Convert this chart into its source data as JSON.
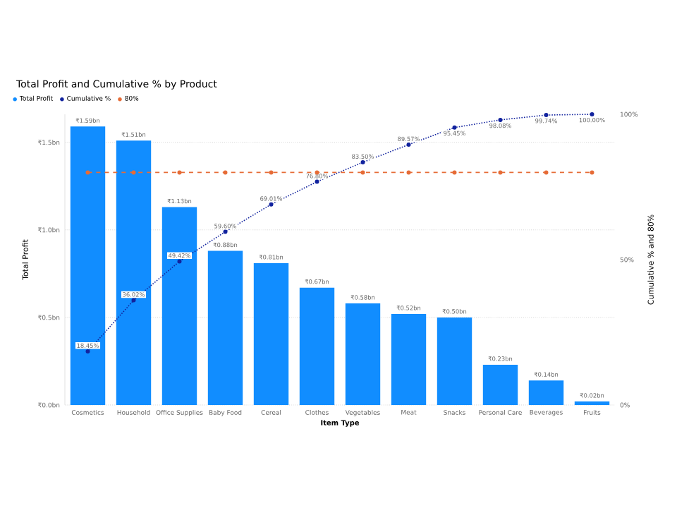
{
  "chart_data": {
    "type": "bar",
    "title": "Total Profit and Cumulative % by Product",
    "xlabel": "Item Type",
    "ylabel": "Total Profit",
    "y2label": "Cumulative % and 80%",
    "categories": [
      "Cosmetics",
      "Household",
      "Office Supplies",
      "Baby Food",
      "Cereal",
      "Clothes",
      "Vegetables",
      "Meat",
      "Snacks",
      "Personal Care",
      "Beverages",
      "Fruits"
    ],
    "series": [
      {
        "name": "Total Profit",
        "color": "#118dff",
        "values": [
          1.59,
          1.51,
          1.13,
          0.88,
          0.81,
          0.67,
          0.58,
          0.52,
          0.5,
          0.23,
          0.14,
          0.02
        ],
        "value_labels": [
          "₹1.59bn",
          "₹1.51bn",
          "₹1.13bn",
          "₹0.88bn",
          "₹0.81bn",
          "₹0.67bn",
          "₹0.58bn",
          "₹0.52bn",
          "₹0.50bn",
          "₹0.23bn",
          "₹0.14bn",
          "₹0.02bn"
        ]
      },
      {
        "name": "Cumulative %",
        "type": "line",
        "axis": "y2",
        "color": "#12239e",
        "line_style": "dotted",
        "marker": "circle",
        "values": [
          18.45,
          36.02,
          49.42,
          59.6,
          69.01,
          76.8,
          83.5,
          89.57,
          95.45,
          98.08,
          99.74,
          100.0
        ],
        "value_labels": [
          "18.45%",
          "36.02%",
          "49.42%",
          "59.60%",
          "69.01%",
          "76.80%",
          "83.50%",
          "89.57%",
          "95.45%",
          "98.08%",
          "99.74%",
          "100.00%"
        ]
      },
      {
        "name": "80%",
        "type": "line",
        "axis": "y2",
        "color": "#e66c37",
        "line_style": "dashed",
        "marker": "circle",
        "values": [
          80,
          80,
          80,
          80,
          80,
          80,
          80,
          80,
          80,
          80,
          80,
          80
        ]
      }
    ],
    "ylim": [
      0,
      1.66
    ],
    "yticks": [
      {
        "value": 0,
        "label": "₹0.0bn"
      },
      {
        "value": 0.5,
        "label": "₹0.5bn"
      },
      {
        "value": 1.0,
        "label": "₹1.0bn"
      },
      {
        "value": 1.5,
        "label": "₹1.5bn"
      }
    ],
    "y2lim": [
      0,
      100
    ],
    "y2ticks": [
      {
        "value": 0,
        "label": "0%"
      },
      {
        "value": 50,
        "label": "50%"
      },
      {
        "value": 100,
        "label": "100%"
      }
    ],
    "grid": "y",
    "legend": "top left"
  }
}
